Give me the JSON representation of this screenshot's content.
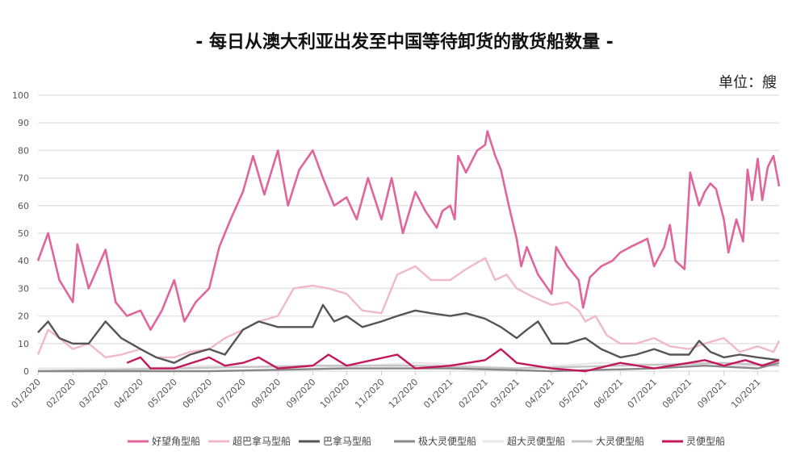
{
  "chart_data": {
    "type": "line",
    "title": "-  每日从澳大利亚出发至中国等待卸货的散货船数量 -",
    "unit_label": "单位：艘",
    "ylim": [
      0,
      100
    ],
    "yticks": [
      0,
      10,
      20,
      30,
      40,
      50,
      60,
      70,
      80,
      90,
      100
    ],
    "xlim": [
      "2020-01-01",
      "2021-10-20"
    ],
    "xticks": [
      "2020-01-01",
      "2020-02-01",
      "2020-03-01",
      "2020-04-01",
      "2020-05-01",
      "2020-06-01",
      "2020-07-01",
      "2020-08-01",
      "2020-09-01",
      "2020-10-01",
      "2020-11-01",
      "2020-12-01",
      "2021-01-01",
      "2021-02-01",
      "2021-03-01",
      "2021-04-01",
      "2021-05-01",
      "2021-06-01",
      "2021-07-01",
      "2021-08-01",
      "2021-09-01",
      "2021-10-01"
    ],
    "xtick_labels": [
      "01/2020",
      "02/2020",
      "03/2020",
      "04/2020",
      "05/2020",
      "06/2020",
      "07/2020",
      "08/2020",
      "09/2020",
      "10/2020",
      "11/2020",
      "12/2020",
      "01/2021",
      "02/2021",
      "03/2021",
      "04/2021",
      "05/2021",
      "06/2021",
      "07/2021",
      "08/2021",
      "09/2021",
      "10/2021"
    ],
    "grid": true,
    "legend_placement": "bottom",
    "series": [
      {
        "name": "好望角型船",
        "color": "#e0659b",
        "width": 2.6,
        "points": [
          [
            "2020-01-01",
            40
          ],
          [
            "2020-01-10",
            50
          ],
          [
            "2020-01-20",
            33
          ],
          [
            "2020-02-01",
            25
          ],
          [
            "2020-02-05",
            46
          ],
          [
            "2020-02-15",
            30
          ],
          [
            "2020-03-01",
            44
          ],
          [
            "2020-03-10",
            25
          ],
          [
            "2020-03-20",
            20
          ],
          [
            "2020-04-01",
            22
          ],
          [
            "2020-04-10",
            15
          ],
          [
            "2020-04-20",
            22
          ],
          [
            "2020-05-01",
            33
          ],
          [
            "2020-05-10",
            18
          ],
          [
            "2020-05-20",
            25
          ],
          [
            "2020-06-01",
            30
          ],
          [
            "2020-06-10",
            45
          ],
          [
            "2020-06-20",
            55
          ],
          [
            "2020-07-01",
            65
          ],
          [
            "2020-07-10",
            78
          ],
          [
            "2020-07-20",
            64
          ],
          [
            "2020-08-01",
            80
          ],
          [
            "2020-08-10",
            60
          ],
          [
            "2020-08-20",
            73
          ],
          [
            "2020-09-01",
            80
          ],
          [
            "2020-09-10",
            70
          ],
          [
            "2020-09-20",
            60
          ],
          [
            "2020-10-01",
            63
          ],
          [
            "2020-10-10",
            55
          ],
          [
            "2020-10-20",
            70
          ],
          [
            "2020-11-01",
            55
          ],
          [
            "2020-11-10",
            70
          ],
          [
            "2020-11-20",
            50
          ],
          [
            "2020-12-01",
            65
          ],
          [
            "2020-12-10",
            58
          ],
          [
            "2020-12-20",
            52
          ],
          [
            "2020-12-25",
            58
          ],
          [
            "2021-01-01",
            60
          ],
          [
            "2021-01-05",
            55
          ],
          [
            "2021-01-08",
            78
          ],
          [
            "2021-01-15",
            72
          ],
          [
            "2021-01-25",
            80
          ],
          [
            "2021-02-01",
            82
          ],
          [
            "2021-02-03",
            87
          ],
          [
            "2021-02-10",
            78
          ],
          [
            "2021-02-15",
            73
          ],
          [
            "2021-02-22",
            60
          ],
          [
            "2021-03-01",
            48
          ],
          [
            "2021-03-05",
            38
          ],
          [
            "2021-03-10",
            45
          ],
          [
            "2021-03-20",
            35
          ],
          [
            "2021-04-01",
            28
          ],
          [
            "2021-04-05",
            45
          ],
          [
            "2021-04-15",
            38
          ],
          [
            "2021-04-25",
            33
          ],
          [
            "2021-04-29",
            23
          ],
          [
            "2021-05-05",
            34
          ],
          [
            "2021-05-15",
            38
          ],
          [
            "2021-05-25",
            40
          ],
          [
            "2021-06-01",
            43
          ],
          [
            "2021-06-10",
            45
          ],
          [
            "2021-06-20",
            47
          ],
          [
            "2021-06-25",
            48
          ],
          [
            "2021-07-01",
            38
          ],
          [
            "2021-07-10",
            45
          ],
          [
            "2021-07-15",
            53
          ],
          [
            "2021-07-20",
            40
          ],
          [
            "2021-07-28",
            37
          ],
          [
            "2021-08-02",
            72
          ],
          [
            "2021-08-10",
            60
          ],
          [
            "2021-08-15",
            65
          ],
          [
            "2021-08-20",
            68
          ],
          [
            "2021-08-25",
            66
          ],
          [
            "2021-09-01",
            55
          ],
          [
            "2021-09-05",
            43
          ],
          [
            "2021-09-12",
            55
          ],
          [
            "2021-09-18",
            47
          ],
          [
            "2021-09-22",
            73
          ],
          [
            "2021-09-26",
            62
          ],
          [
            "2021-10-01",
            77
          ],
          [
            "2021-10-05",
            62
          ],
          [
            "2021-10-10",
            74
          ],
          [
            "2021-10-15",
            78
          ],
          [
            "2021-10-20",
            67
          ]
        ]
      },
      {
        "name": "超巴拿马型船",
        "color": "#f0b8cc",
        "width": 2.4,
        "points": [
          [
            "2020-01-01",
            6
          ],
          [
            "2020-01-10",
            15
          ],
          [
            "2020-01-20",
            12
          ],
          [
            "2020-02-01",
            8
          ],
          [
            "2020-02-15",
            10
          ],
          [
            "2020-03-01",
            5
          ],
          [
            "2020-03-15",
            6
          ],
          [
            "2020-04-01",
            8
          ],
          [
            "2020-04-15",
            5
          ],
          [
            "2020-05-01",
            5
          ],
          [
            "2020-05-15",
            7
          ],
          [
            "2020-06-01",
            8
          ],
          [
            "2020-06-15",
            12
          ],
          [
            "2020-07-01",
            15
          ],
          [
            "2020-07-15",
            18
          ],
          [
            "2020-08-01",
            20
          ],
          [
            "2020-08-15",
            30
          ],
          [
            "2020-09-01",
            31
          ],
          [
            "2020-09-15",
            30
          ],
          [
            "2020-10-01",
            28
          ],
          [
            "2020-10-15",
            22
          ],
          [
            "2020-11-01",
            21
          ],
          [
            "2020-11-15",
            35
          ],
          [
            "2020-12-01",
            38
          ],
          [
            "2020-12-15",
            33
          ],
          [
            "2021-01-01",
            33
          ],
          [
            "2021-01-15",
            37
          ],
          [
            "2021-02-01",
            41
          ],
          [
            "2021-02-10",
            33
          ],
          [
            "2021-02-20",
            35
          ],
          [
            "2021-03-01",
            30
          ],
          [
            "2021-03-15",
            27
          ],
          [
            "2021-04-01",
            24
          ],
          [
            "2021-04-15",
            25
          ],
          [
            "2021-04-25",
            22
          ],
          [
            "2021-05-01",
            18
          ],
          [
            "2021-05-10",
            20
          ],
          [
            "2021-05-20",
            13
          ],
          [
            "2021-06-01",
            10
          ],
          [
            "2021-06-15",
            10
          ],
          [
            "2021-07-01",
            12
          ],
          [
            "2021-07-15",
            9
          ],
          [
            "2021-08-01",
            8
          ],
          [
            "2021-08-15",
            10
          ],
          [
            "2021-09-01",
            12
          ],
          [
            "2021-09-15",
            7
          ],
          [
            "2021-10-01",
            9
          ],
          [
            "2021-10-15",
            7
          ],
          [
            "2021-10-20",
            11
          ]
        ]
      },
      {
        "name": "巴拿马型船",
        "color": "#555555",
        "width": 2.4,
        "points": [
          [
            "2020-01-01",
            14
          ],
          [
            "2020-01-10",
            18
          ],
          [
            "2020-01-20",
            12
          ],
          [
            "2020-02-01",
            10
          ],
          [
            "2020-02-15",
            10
          ],
          [
            "2020-03-01",
            18
          ],
          [
            "2020-03-15",
            12
          ],
          [
            "2020-04-01",
            8
          ],
          [
            "2020-04-15",
            5
          ],
          [
            "2020-05-01",
            3
          ],
          [
            "2020-05-15",
            6
          ],
          [
            "2020-06-01",
            8
          ],
          [
            "2020-06-15",
            6
          ],
          [
            "2020-07-01",
            15
          ],
          [
            "2020-07-15",
            18
          ],
          [
            "2020-08-01",
            16
          ],
          [
            "2020-08-15",
            16
          ],
          [
            "2020-09-01",
            16
          ],
          [
            "2020-09-10",
            24
          ],
          [
            "2020-09-20",
            18
          ],
          [
            "2020-10-01",
            20
          ],
          [
            "2020-10-15",
            16
          ],
          [
            "2020-11-01",
            18
          ],
          [
            "2020-11-15",
            20
          ],
          [
            "2020-12-01",
            22
          ],
          [
            "2020-12-15",
            21
          ],
          [
            "2021-01-01",
            20
          ],
          [
            "2021-01-15",
            21
          ],
          [
            "2021-02-01",
            19
          ],
          [
            "2021-02-15",
            16
          ],
          [
            "2021-03-01",
            12
          ],
          [
            "2021-03-10",
            15
          ],
          [
            "2021-03-20",
            18
          ],
          [
            "2021-04-01",
            10
          ],
          [
            "2021-04-15",
            10
          ],
          [
            "2021-05-01",
            12
          ],
          [
            "2021-05-15",
            8
          ],
          [
            "2021-06-01",
            5
          ],
          [
            "2021-06-15",
            6
          ],
          [
            "2021-07-01",
            8
          ],
          [
            "2021-07-15",
            6
          ],
          [
            "2021-08-01",
            6
          ],
          [
            "2021-08-10",
            11
          ],
          [
            "2021-08-20",
            7
          ],
          [
            "2021-09-01",
            5
          ],
          [
            "2021-09-15",
            6
          ],
          [
            "2021-10-01",
            5
          ],
          [
            "2021-10-20",
            4
          ]
        ]
      },
      {
        "name": "极大灵便型船",
        "color": "#888888",
        "width": 2.4,
        "points": [
          [
            "2020-01-01",
            0
          ],
          [
            "2020-06-01",
            0
          ],
          [
            "2020-10-01",
            1
          ],
          [
            "2021-01-01",
            1
          ],
          [
            "2021-04-01",
            0
          ],
          [
            "2021-07-01",
            1
          ],
          [
            "2021-08-15",
            2
          ],
          [
            "2021-10-01",
            1
          ],
          [
            "2021-10-20",
            3
          ]
        ]
      },
      {
        "name": "超大灵便型船",
        "color": "#e8e8e8",
        "width": 2.4,
        "points": [
          [
            "2020-01-01",
            1
          ],
          [
            "2020-04-01",
            1
          ],
          [
            "2020-06-01",
            2
          ],
          [
            "2020-09-01",
            1
          ],
          [
            "2020-12-01",
            3
          ],
          [
            "2021-03-01",
            1
          ],
          [
            "2021-05-15",
            3
          ],
          [
            "2021-08-01",
            2
          ],
          [
            "2021-10-20",
            2
          ]
        ]
      },
      {
        "name": "大灵便型船",
        "color": "#c4c4c4",
        "width": 2.4,
        "points": [
          [
            "2020-01-01",
            0
          ],
          [
            "2020-05-01",
            1
          ],
          [
            "2020-09-01",
            2
          ],
          [
            "2020-12-01",
            2
          ],
          [
            "2021-03-01",
            1
          ],
          [
            "2021-06-01",
            2
          ],
          [
            "2021-09-01",
            3
          ],
          [
            "2021-10-20",
            2
          ]
        ]
      },
      {
        "name": "灵便型船",
        "color": "#c2185b",
        "width": 2.4,
        "points": [
          [
            "2020-03-20",
            3
          ],
          [
            "2020-04-01",
            5
          ],
          [
            "2020-04-10",
            1
          ],
          [
            "2020-05-01",
            1
          ],
          [
            "2020-06-01",
            5
          ],
          [
            "2020-06-15",
            2
          ],
          [
            "2020-07-01",
            3
          ],
          [
            "2020-07-15",
            5
          ],
          [
            "2020-08-01",
            1
          ],
          [
            "2020-09-01",
            2
          ],
          [
            "2020-09-15",
            6
          ],
          [
            "2020-10-01",
            2
          ],
          [
            "2020-11-15",
            6
          ],
          [
            "2020-12-01",
            1
          ],
          [
            "2021-01-01",
            2
          ],
          [
            "2021-02-01",
            4
          ],
          [
            "2021-02-15",
            8
          ],
          [
            "2021-03-01",
            3
          ],
          [
            "2021-04-01",
            1
          ],
          [
            "2021-05-01",
            0
          ],
          [
            "2021-06-01",
            3
          ],
          [
            "2021-07-01",
            1
          ],
          [
            "2021-08-01",
            3
          ],
          [
            "2021-08-15",
            4
          ],
          [
            "2021-09-01",
            2
          ],
          [
            "2021-09-20",
            4
          ],
          [
            "2021-10-05",
            2
          ],
          [
            "2021-10-20",
            4
          ]
        ]
      }
    ]
  }
}
